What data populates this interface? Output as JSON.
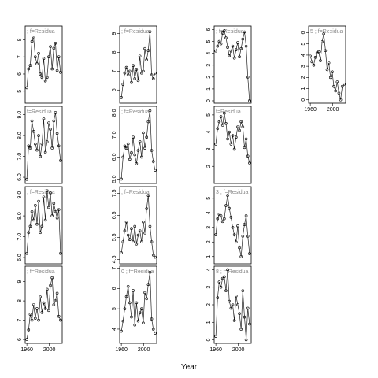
{
  "xlabel": "Year",
  "chart_data": [
    {
      "type": "line",
      "label": "; f=Residua",
      "x": [
        1960,
        1963,
        1966,
        1969,
        1972,
        1975,
        1978,
        1981,
        1984,
        1987,
        1990,
        1993,
        1996,
        1999,
        2002,
        2005,
        2008,
        2011,
        2014,
        2017,
        2020
      ],
      "values": [
        5.2,
        6.3,
        6.5,
        7.9,
        8.1,
        7.0,
        6.6,
        7.2,
        6.0,
        5.8,
        6.9,
        5.6,
        5.8,
        7.0,
        7.6,
        6.3,
        7.5,
        7.8,
        6.2,
        7.0,
        6.1
      ],
      "xlim": [
        1957,
        2023
      ],
      "ylim": [
        4.3,
        8.8
      ],
      "yticks": [
        5,
        6,
        7,
        8
      ]
    },
    {
      "type": "line",
      "label": "f=Residua",
      "x": [
        1960,
        1963,
        1966,
        1969,
        1972,
        1975,
        1978,
        1981,
        1984,
        1987,
        1990,
        1993,
        1996,
        1999,
        2002,
        2005,
        2008,
        2011,
        2014,
        2017,
        2020
      ],
      "values": [
        5.9,
        7.5,
        7.4,
        8.7,
        8.2,
        7.6,
        7.3,
        8.0,
        7.0,
        7.6,
        8.8,
        7.2,
        7.7,
        8.6,
        8.3,
        7.4,
        8.7,
        9.1,
        8.1,
        7.5,
        6.8
      ],
      "xlim": [
        1957,
        2023
      ],
      "ylim": [
        5.7,
        9.4
      ],
      "yticks": [
        {
          "value": 6,
          "label": "6.0"
        },
        {
          "value": 7,
          "label": "7.0"
        },
        {
          "value": 8,
          "label": "8.0"
        },
        {
          "value": 9,
          "label": "9.0"
        }
      ]
    },
    {
      "type": "line",
      "label": "; f=Residua",
      "x": [
        1960,
        1963,
        1966,
        1969,
        1972,
        1975,
        1978,
        1981,
        1984,
        1987,
        1990,
        1993,
        1996,
        1999,
        2002,
        2005,
        2008,
        2011,
        2014,
        2017,
        2020
      ],
      "values": [
        6.2,
        7.2,
        7.5,
        8.2,
        7.8,
        8.5,
        7.6,
        8.7,
        7.2,
        7.5,
        8.9,
        7.8,
        9.2,
        8.4,
        9.1,
        8.0,
        8.6,
        8.2,
        7.9,
        8.3,
        6.2
      ],
      "xlim": [
        1957,
        2023
      ],
      "ylim": [
        5.7,
        9.4
      ],
      "yticks": [
        {
          "value": 6,
          "label": "6.0"
        },
        {
          "value": 7,
          "label": "7.0"
        },
        {
          "value": 8,
          "label": "8.0"
        },
        {
          "value": 9,
          "label": "9.0"
        }
      ]
    },
    {
      "type": "line",
      "label": "; f=Residua",
      "x": [
        1960,
        1963,
        1966,
        1969,
        1972,
        1975,
        1978,
        1981,
        1984,
        1987,
        1990,
        1993,
        1996,
        1999,
        2002,
        2005,
        2008,
        2011,
        2014,
        2017,
        2020
      ],
      "values": [
        6.0,
        6.5,
        7.3,
        7.0,
        7.8,
        7.1,
        7.6,
        7.0,
        8.2,
        7.4,
        7.9,
        7.6,
        8.6,
        7.5,
        8.8,
        9.2,
        7.8,
        8.0,
        8.4,
        7.2,
        7.0
      ],
      "xlim": [
        1957,
        2023
      ],
      "ylim": [
        5.8,
        9.8
      ],
      "yticks": [
        6,
        7,
        8,
        9
      ],
      "xticks": [
        1960,
        2000
      ]
    },
    {
      "type": "line",
      "label": "; f=Residua",
      "x": [
        1960,
        1963,
        1966,
        1969,
        1972,
        1975,
        1978,
        1981,
        1984,
        1987,
        1990,
        1993,
        1996,
        1999,
        2002,
        2005,
        2008,
        2011,
        2014,
        2017,
        2020
      ],
      "values": [
        5.6,
        6.3,
        6.9,
        7.2,
        6.8,
        7.0,
        6.4,
        7.3,
        6.6,
        7.1,
        6.5,
        7.8,
        6.9,
        7.0,
        8.2,
        7.6,
        8.1,
        9.1,
        6.8,
        6.6,
        6.9
      ],
      "xlim": [
        1957,
        2023
      ],
      "ylim": [
        5.3,
        9.4
      ],
      "yticks": [
        6,
        7,
        8,
        9
      ]
    },
    {
      "type": "line",
      "label": "; f=Residua",
      "x": [
        1960,
        1963,
        1966,
        1969,
        1972,
        1975,
        1978,
        1981,
        1984,
        1987,
        1990,
        1993,
        1996,
        1999,
        2002,
        2005,
        2008,
        2011,
        2014,
        2017,
        2020
      ],
      "values": [
        5.0,
        6.0,
        6.5,
        6.4,
        6.6,
        5.9,
        6.2,
        6.9,
        6.1,
        5.7,
        6.3,
        6.7,
        6.0,
        7.1,
        6.4,
        6.9,
        7.6,
        8.1,
        6.3,
        5.8,
        5.4
      ],
      "xlim": [
        1957,
        2023
      ],
      "ylim": [
        4.8,
        8.3
      ],
      "yticks": [
        {
          "value": 5,
          "label": "5.0"
        },
        {
          "value": 6,
          "label": "6.0"
        },
        {
          "value": 7,
          "label": "7.0"
        },
        {
          "value": 8,
          "label": "8.0"
        }
      ]
    },
    {
      "type": "line",
      "label": "; f=Residua",
      "x": [
        1960,
        1963,
        1966,
        1969,
        1972,
        1975,
        1978,
        1981,
        1984,
        1987,
        1990,
        1993,
        1996,
        1999,
        2002,
        2005,
        2008,
        2011,
        2014,
        2017,
        2020
      ],
      "values": [
        4.8,
        5.3,
        5.8,
        6.2,
        5.6,
        5.4,
        5.9,
        5.3,
        6.0,
        5.2,
        5.6,
        5.8,
        5.3,
        6.2,
        5.7,
        6.8,
        7.4,
        6.0,
        5.3,
        4.7,
        4.6
      ],
      "xlim": [
        1957,
        2023
      ],
      "ylim": [
        4.3,
        7.8
      ],
      "yticks": [
        4.5,
        5.5,
        6.5,
        7.5
      ]
    },
    {
      "type": "line",
      "label": "0 ; f=Residua",
      "x": [
        1960,
        1963,
        1966,
        1969,
        1972,
        1975,
        1978,
        1981,
        1984,
        1987,
        1990,
        1993,
        1996,
        1999,
        2002,
        2005,
        2008,
        2011,
        2014,
        2017,
        2020
      ],
      "values": [
        3.9,
        4.4,
        5.0,
        5.6,
        6.1,
        5.3,
        4.6,
        5.9,
        4.2,
        5.3,
        4.4,
        4.8,
        5.0,
        4.3,
        5.8,
        5.5,
        6.2,
        6.8,
        4.5,
        4.0,
        3.8
      ],
      "xlim": [
        1957,
        2023
      ],
      "ylim": [
        3.3,
        7.1
      ],
      "yticks": [
        4,
        5,
        6,
        7
      ],
      "xticks": [
        1960,
        2000
      ]
    },
    {
      "type": "line",
      "label": "; f=Residua",
      "x": [
        1960,
        1963,
        1966,
        1969,
        1972,
        1975,
        1978,
        1981,
        1984,
        1987,
        1990,
        1993,
        1996,
        1999,
        2002,
        2005,
        2008,
        2011,
        2014,
        2017,
        2020
      ],
      "values": [
        4.2,
        4.6,
        5.0,
        4.8,
        5.7,
        5.9,
        5.3,
        4.5,
        3.8,
        4.2,
        4.6,
        3.6,
        4.3,
        4.9,
        3.7,
        4.4,
        5.2,
        5.8,
        4.6,
        2.0,
        0
      ],
      "xlim": [
        1957,
        2023
      ],
      "ylim": [
        -0.2,
        6.3
      ],
      "yticks": [
        0,
        1,
        2,
        3,
        4,
        5,
        6
      ]
    },
    {
      "type": "line",
      "label": "f=Residua",
      "x": [
        1960,
        1963,
        1966,
        1969,
        1972,
        1975,
        1978,
        1981,
        1984,
        1987,
        1990,
        1993,
        1996,
        1999,
        2002,
        2005,
        2008,
        2011,
        2014,
        2017,
        2020
      ],
      "values": [
        3.3,
        4.2,
        4.6,
        4.9,
        4.4,
        5.1,
        4.5,
        3.6,
        4.0,
        3.3,
        3.8,
        3.0,
        3.7,
        4.3,
        4.1,
        4.6,
        4.3,
        3.1,
        3.6,
        2.6,
        2.2
      ],
      "xlim": [
        1957,
        2023
      ],
      "ylim": [
        1,
        5.5
      ],
      "yticks": [
        2,
        3,
        4,
        5
      ]
    },
    {
      "type": "line",
      "label": "3 ; f=Residua",
      "x": [
        1960,
        1963,
        1966,
        1969,
        1972,
        1975,
        1978,
        1981,
        1984,
        1987,
        1990,
        1993,
        1996,
        1999,
        2002,
        2005,
        2008,
        2011,
        2014,
        2017,
        2020
      ],
      "values": [
        2.5,
        3.6,
        3.9,
        3.8,
        3.4,
        3.6,
        4.5,
        5.2,
        4.3,
        3.7,
        3.0,
        2.5,
        2.0,
        3.1,
        1.6,
        1.0,
        2.4,
        3.2,
        3.8,
        2.4,
        1.2
      ],
      "xlim": [
        1957,
        2023
      ],
      "ylim": [
        0.5,
        5.8
      ],
      "yticks": [
        1,
        2,
        3,
        4,
        5
      ]
    },
    {
      "type": "line",
      "label": "8 ; f=Residua",
      "x": [
        1960,
        1963,
        1966,
        1969,
        1972,
        1975,
        1978,
        1981,
        1984,
        1987,
        1990,
        1993,
        1996,
        1999,
        2002,
        2005,
        2008,
        2011,
        2014,
        2017,
        2020
      ],
      "values": [
        0.2,
        2.4,
        3.3,
        3.0,
        3.5,
        3.6,
        2.8,
        4.0,
        2.2,
        1.8,
        2.0,
        1.1,
        2.5,
        2.0,
        1.5,
        0.6,
        2.8,
        1.3,
        0,
        1.8,
        0.9
      ],
      "xlim": [
        1957,
        2023
      ],
      "ylim": [
        -0.2,
        4.2
      ],
      "yticks": [
        0,
        1,
        2,
        3,
        4
      ],
      "xticks": [
        1960,
        2000
      ]
    },
    {
      "type": "line",
      "label": "5 ; f=Residua",
      "x": [
        1960,
        1963,
        1966,
        1969,
        1972,
        1975,
        1978,
        1981,
        1984,
        1987,
        1990,
        1993,
        1996,
        1999,
        2002,
        2005,
        2008,
        2011,
        2014,
        2017,
        2020
      ],
      "values": [
        3.9,
        3.4,
        3.1,
        3.8,
        4.2,
        4.3,
        3.5,
        5.2,
        5.9,
        4.4,
        2.7,
        3.3,
        2.0,
        2.5,
        1.2,
        0.8,
        1.6,
        0.6,
        0,
        1.2,
        1.4
      ],
      "xlim": [
        1957,
        2023
      ],
      "ylim": [
        -0.3,
        6.6
      ],
      "yticks": [
        0,
        1,
        2,
        3,
        4,
        5,
        6
      ],
      "xticks": [
        1960,
        2000
      ]
    }
  ]
}
